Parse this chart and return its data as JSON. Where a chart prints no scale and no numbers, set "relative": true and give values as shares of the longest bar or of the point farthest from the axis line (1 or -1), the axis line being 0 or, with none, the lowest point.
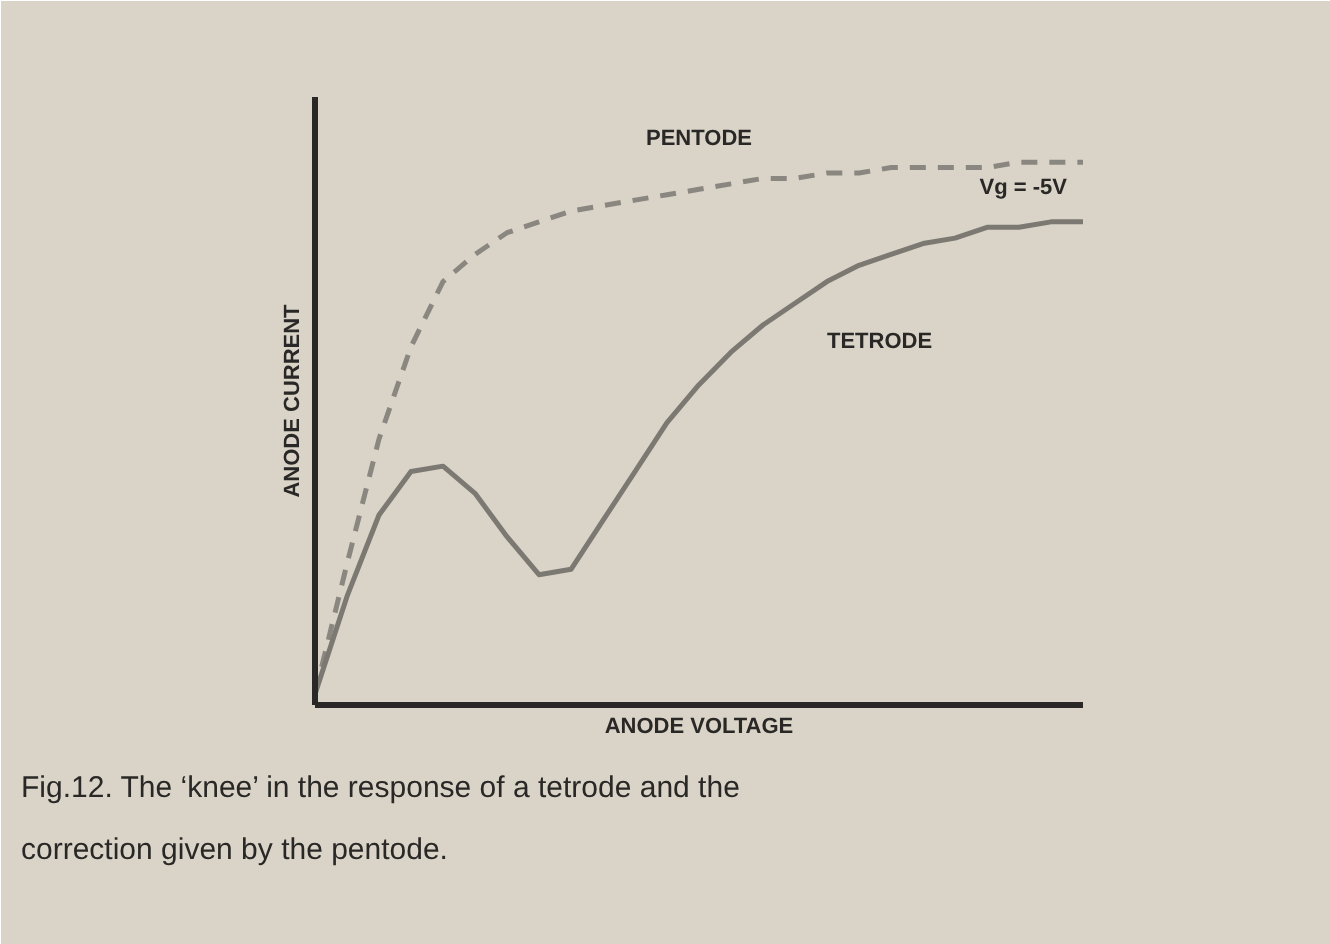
{
  "chart_data": {
    "type": "line",
    "relative": true,
    "xlabel": "ANODE VOLTAGE",
    "ylabel": "ANODE CURRENT",
    "categories": [
      null,
      null,
      null,
      null,
      null,
      null,
      null,
      null,
      null,
      null,
      null,
      null,
      null,
      null,
      null,
      null,
      null,
      null,
      null,
      null,
      null,
      null,
      null,
      null,
      null
    ],
    "series": [
      {
        "name": "PENTODE",
        "color": "#8a8680",
        "line_style": "dashed",
        "values": [
          0.02,
          0.26,
          0.49,
          0.66,
          0.78,
          0.83,
          0.87,
          0.89,
          0.91,
          0.92,
          0.93,
          0.94,
          0.95,
          0.96,
          0.97,
          0.97,
          0.98,
          0.98,
          0.99,
          0.99,
          0.99,
          0.99,
          1.0,
          1.0,
          1.0
        ]
      },
      {
        "name": "TETRODE",
        "color": "#7c7872",
        "line_style": "solid",
        "values": [
          0.02,
          0.2,
          0.35,
          0.43,
          0.44,
          0.39,
          0.31,
          0.24,
          0.25,
          0.34,
          0.43,
          0.52,
          0.59,
          0.65,
          0.7,
          0.74,
          0.78,
          0.81,
          0.83,
          0.85,
          0.86,
          0.88,
          0.88,
          0.89,
          0.89
        ]
      }
    ],
    "annotations": [
      "Vg = -5V",
      "Fig.12. The ‘knee’ in the response of a tetrode and the correction given by the pentode."
    ],
    "legend": false
  }
}
